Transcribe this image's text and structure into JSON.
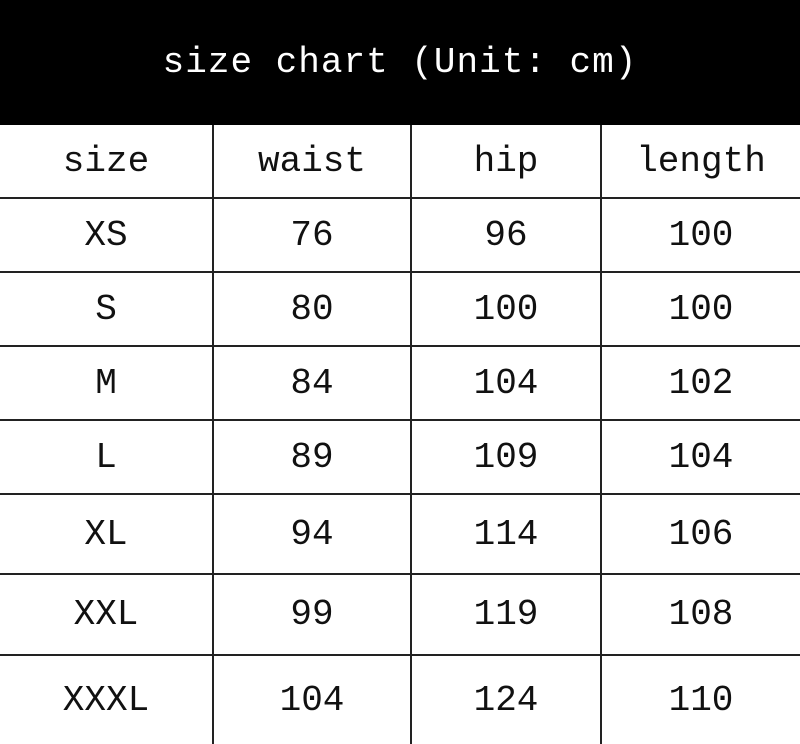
{
  "title": "size chart (Unit: cm)",
  "chart_data": {
    "type": "table",
    "title": "size chart (Unit: cm)",
    "columns": [
      "size",
      "waist",
      "hip",
      "length"
    ],
    "rows": [
      [
        "XS",
        "76",
        "96",
        "100"
      ],
      [
        "S",
        "80",
        "100",
        "100"
      ],
      [
        "M",
        "84",
        "104",
        "102"
      ],
      [
        "L",
        "89",
        "109",
        "104"
      ],
      [
        "XL",
        "94",
        "114",
        "106"
      ],
      [
        "XXL",
        "99",
        "119",
        "108"
      ],
      [
        "XXXL",
        "104",
        "124",
        "110"
      ]
    ]
  }
}
